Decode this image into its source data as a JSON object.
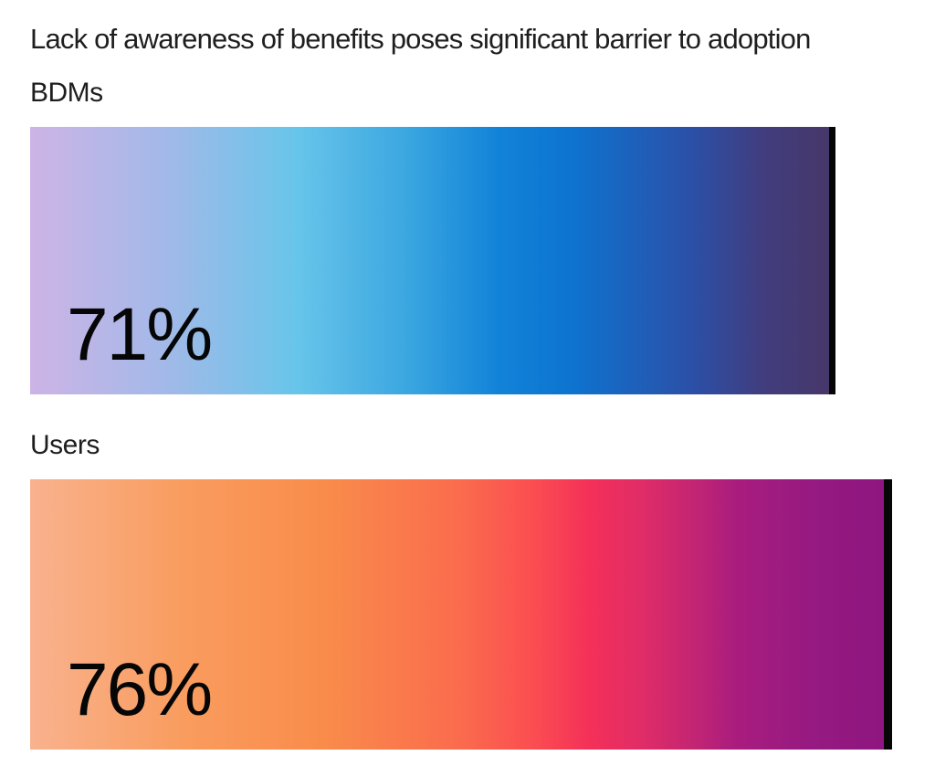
{
  "page": {
    "title": "Lack of awareness of benefits poses significant barrier to adoption",
    "background": "#ffffff",
    "text_color": "#1e1e1e",
    "value_text_color": "#060606"
  },
  "bars": [
    {
      "id": "bdms",
      "label": "BDMs",
      "value": 71,
      "value_label": "71%",
      "end_cap_color": "#060606",
      "gradient": [
        {
          "color": "#cdb4e6",
          "pos": "0%"
        },
        {
          "color": "#a2b9e8",
          "pos": "17%"
        },
        {
          "color": "#68c5ea",
          "pos": "33%"
        },
        {
          "color": "#3aa6e0",
          "pos": "47%"
        },
        {
          "color": "#1283d8",
          "pos": "58%"
        },
        {
          "color": "#0d74d0",
          "pos": "67%"
        },
        {
          "color": "#2b50a8",
          "pos": "82%"
        },
        {
          "color": "#413d7e",
          "pos": "91%"
        },
        {
          "color": "#473768",
          "pos": "100%"
        }
      ]
    },
    {
      "id": "users",
      "label": "Users",
      "value": 76,
      "value_label": "76%",
      "end_cap_color": "#060606",
      "gradient": [
        {
          "color": "#f9b28e",
          "pos": "0%"
        },
        {
          "color": "#f99c5e",
          "pos": "18%"
        },
        {
          "color": "#f98c4b",
          "pos": "34%"
        },
        {
          "color": "#fa6b4d",
          "pos": "50%"
        },
        {
          "color": "#fb4f51",
          "pos": "58%"
        },
        {
          "color": "#f43059",
          "pos": "65%"
        },
        {
          "color": "#e02c67",
          "pos": "71%"
        },
        {
          "color": "#c32573",
          "pos": "77%"
        },
        {
          "color": "#a91c7e",
          "pos": "82%"
        },
        {
          "color": "#951a81",
          "pos": "91%"
        },
        {
          "color": "#8e1580",
          "pos": "100%"
        }
      ]
    }
  ],
  "chart_data": {
    "type": "bar",
    "orientation": "horizontal",
    "title": "Lack of awareness of benefits poses significant barrier to adoption",
    "categories": [
      "BDMs",
      "Users"
    ],
    "values": [
      71,
      76
    ],
    "value_labels": [
      "71%",
      "76%"
    ],
    "xlabel": "",
    "ylabel": "",
    "axes_shown": false,
    "grid": false,
    "legend": "none",
    "bars_proportional": true,
    "bar_end_marker": "black vertical cap at bar end",
    "value_label_position": "inside bottom-left"
  }
}
